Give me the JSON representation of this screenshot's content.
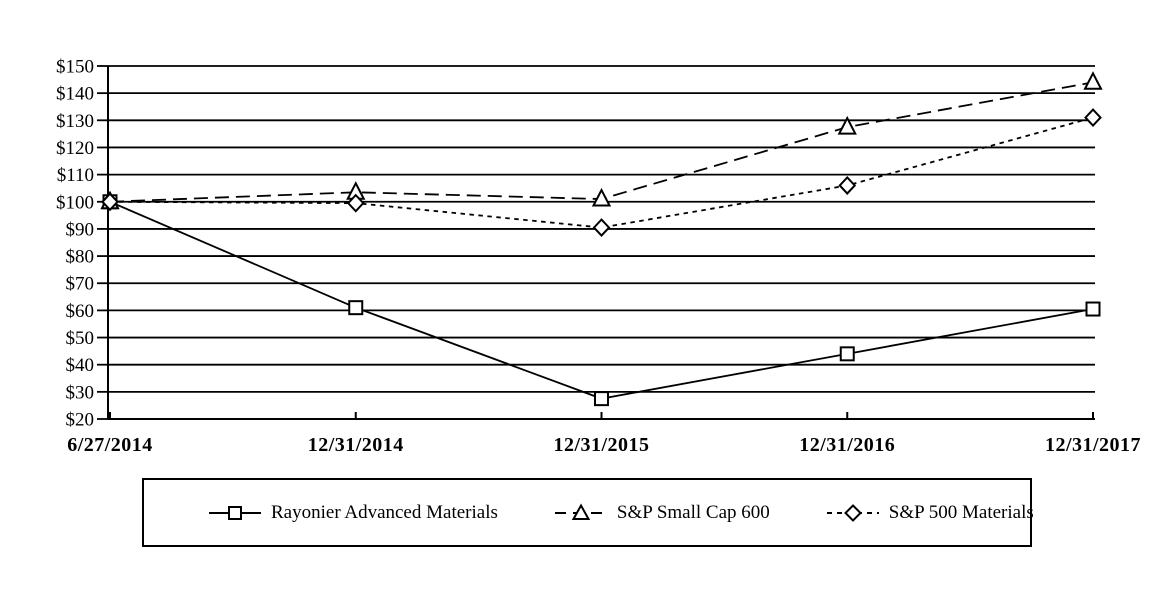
{
  "figure": {
    "background": "#ffffff",
    "foreground": "#000000"
  },
  "chart_data": {
    "type": "line",
    "title": "",
    "xlabel": "",
    "ylabel": "",
    "x_labels": [
      "6/27/2014",
      "12/31/2014",
      "12/31/2015",
      "12/31/2016",
      "12/31/2017"
    ],
    "y_tick_labels": [
      "$20",
      "$30",
      "$40",
      "$50",
      "$60",
      "$70",
      "$80",
      "$90",
      "$100",
      "$110",
      "$120",
      "$130",
      "$140",
      "$150"
    ],
    "ylim": [
      20,
      150
    ],
    "y_step": 10,
    "grid": "horizontal",
    "legend_position": "bottom-box",
    "color": "#000000",
    "series": [
      {
        "name": "Rayonier Advanced Materials",
        "marker": "square",
        "line_style": "solid",
        "values": [
          100,
          61,
          27.5,
          44,
          60.5
        ]
      },
      {
        "name": "S&P Small Cap 600",
        "marker": "triangle",
        "line_style": "long-dash",
        "values": [
          100,
          103.5,
          101,
          127.5,
          144
        ]
      },
      {
        "name": "S&P 500 Materials",
        "marker": "diamond",
        "line_style": "short-dash",
        "values": [
          100,
          99.5,
          90.5,
          106,
          131
        ]
      }
    ]
  }
}
